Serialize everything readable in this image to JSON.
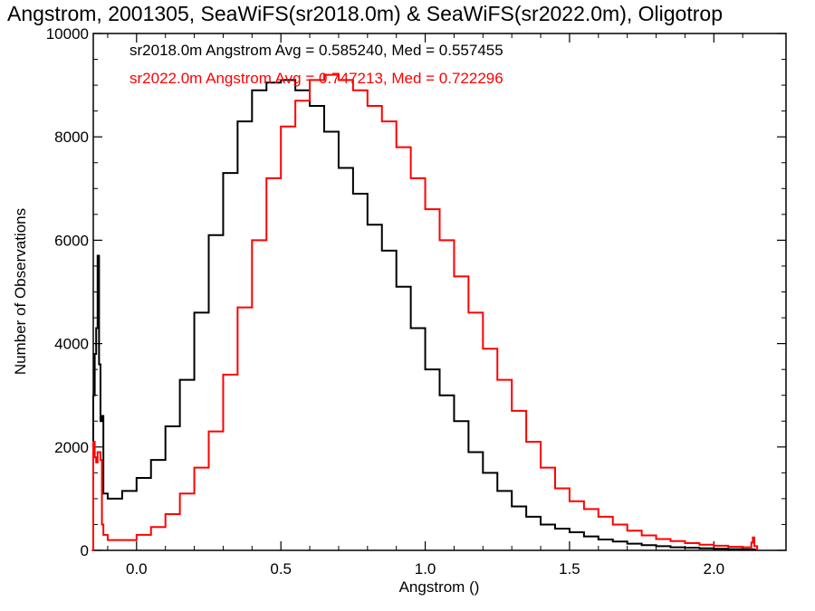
{
  "chart_data": {
    "type": "line",
    "style": "step-histogram",
    "title": "Angstrom, 2001305, SeaWiFS(sr2018.0m) & SeaWiFS(sr2022.0m), Oligotrop",
    "xlabel": "Angstrom ()",
    "ylabel": "Number of Observations",
    "xlim": [
      -0.15,
      2.25
    ],
    "ylim": [
      0,
      10000
    ],
    "xticks": [
      {
        "value": 0.0,
        "label": "0.0"
      },
      {
        "value": 0.5,
        "label": "0.5"
      },
      {
        "value": 1.0,
        "label": "1.0"
      },
      {
        "value": 1.5,
        "label": "1.5"
      },
      {
        "value": 2.0,
        "label": "2.0"
      }
    ],
    "yticks": [
      {
        "value": 0,
        "label": "0"
      },
      {
        "value": 2000,
        "label": "2000"
      },
      {
        "value": 4000,
        "label": "4000"
      },
      {
        "value": 6000,
        "label": "6000"
      },
      {
        "value": 8000,
        "label": "8000"
      },
      {
        "value": 10000,
        "label": "10000"
      }
    ],
    "annotations": [
      {
        "text": "sr2018.0m Angstrom Avg = 0.585240, Med = 0.557455",
        "color": "#000000"
      },
      {
        "text": "sr2022.0m Angstrom Avg = 0.747213, Med = 0.722296",
        "color": "#ff0000"
      }
    ],
    "series": [
      {
        "name": "sr2018.0m",
        "color": "#000000",
        "points": [
          [
            -0.155,
            0
          ],
          [
            -0.15,
            3000
          ],
          [
            -0.145,
            3800
          ],
          [
            -0.14,
            4300
          ],
          [
            -0.135,
            5700
          ],
          [
            -0.13,
            3600
          ],
          [
            -0.125,
            2500
          ],
          [
            -0.12,
            2600
          ],
          [
            -0.115,
            1100
          ],
          [
            -0.1,
            1000
          ],
          [
            -0.05,
            1150
          ],
          [
            0.0,
            1400
          ],
          [
            0.05,
            1750
          ],
          [
            0.1,
            2400
          ],
          [
            0.15,
            3300
          ],
          [
            0.2,
            4600
          ],
          [
            0.25,
            6100
          ],
          [
            0.3,
            7300
          ],
          [
            0.35,
            8300
          ],
          [
            0.4,
            8900
          ],
          [
            0.45,
            9050
          ],
          [
            0.5,
            9100
          ],
          [
            0.55,
            8900
          ],
          [
            0.6,
            8600
          ],
          [
            0.65,
            8100
          ],
          [
            0.7,
            7400
          ],
          [
            0.75,
            6900
          ],
          [
            0.8,
            6300
          ],
          [
            0.85,
            5800
          ],
          [
            0.9,
            5100
          ],
          [
            0.95,
            4300
          ],
          [
            1.0,
            3500
          ],
          [
            1.05,
            3000
          ],
          [
            1.1,
            2500
          ],
          [
            1.15,
            1900
          ],
          [
            1.2,
            1500
          ],
          [
            1.25,
            1150
          ],
          [
            1.3,
            850
          ],
          [
            1.35,
            650
          ],
          [
            1.4,
            500
          ],
          [
            1.45,
            420
          ],
          [
            1.5,
            350
          ],
          [
            1.55,
            270
          ],
          [
            1.6,
            210
          ],
          [
            1.65,
            170
          ],
          [
            1.7,
            130
          ],
          [
            1.75,
            100
          ],
          [
            1.8,
            80
          ],
          [
            1.85,
            60
          ],
          [
            1.9,
            50
          ],
          [
            1.95,
            40
          ],
          [
            2.0,
            30
          ],
          [
            2.05,
            25
          ],
          [
            2.1,
            20
          ],
          [
            2.14,
            10
          ],
          [
            2.15,
            0
          ]
        ]
      },
      {
        "name": "sr2022.0m",
        "color": "#ff0000",
        "points": [
          [
            -0.155,
            0
          ],
          [
            -0.15,
            2100
          ],
          [
            -0.145,
            1800
          ],
          [
            -0.14,
            1700
          ],
          [
            -0.135,
            1900
          ],
          [
            -0.125,
            1750
          ],
          [
            -0.12,
            500
          ],
          [
            -0.115,
            300
          ],
          [
            -0.1,
            200
          ],
          [
            -0.05,
            200
          ],
          [
            0.0,
            300
          ],
          [
            0.05,
            450
          ],
          [
            0.1,
            700
          ],
          [
            0.15,
            1100
          ],
          [
            0.2,
            1600
          ],
          [
            0.25,
            2300
          ],
          [
            0.3,
            3400
          ],
          [
            0.35,
            4700
          ],
          [
            0.4,
            6000
          ],
          [
            0.45,
            7200
          ],
          [
            0.5,
            8200
          ],
          [
            0.55,
            8700
          ],
          [
            0.6,
            9100
          ],
          [
            0.65,
            9200
          ],
          [
            0.7,
            9100
          ],
          [
            0.75,
            8900
          ],
          [
            0.8,
            8600
          ],
          [
            0.85,
            8300
          ],
          [
            0.9,
            7800
          ],
          [
            0.95,
            7200
          ],
          [
            1.0,
            6600
          ],
          [
            1.05,
            6000
          ],
          [
            1.1,
            5300
          ],
          [
            1.15,
            4600
          ],
          [
            1.2,
            3900
          ],
          [
            1.25,
            3300
          ],
          [
            1.3,
            2700
          ],
          [
            1.35,
            2100
          ],
          [
            1.4,
            1600
          ],
          [
            1.45,
            1200
          ],
          [
            1.5,
            950
          ],
          [
            1.55,
            800
          ],
          [
            1.6,
            650
          ],
          [
            1.65,
            500
          ],
          [
            1.7,
            380
          ],
          [
            1.75,
            290
          ],
          [
            1.8,
            220
          ],
          [
            1.85,
            180
          ],
          [
            1.9,
            140
          ],
          [
            1.95,
            110
          ],
          [
            2.0,
            90
          ],
          [
            2.05,
            70
          ],
          [
            2.1,
            60
          ],
          [
            2.13,
            150
          ],
          [
            2.135,
            250
          ],
          [
            2.14,
            80
          ],
          [
            2.15,
            0
          ]
        ]
      }
    ]
  }
}
